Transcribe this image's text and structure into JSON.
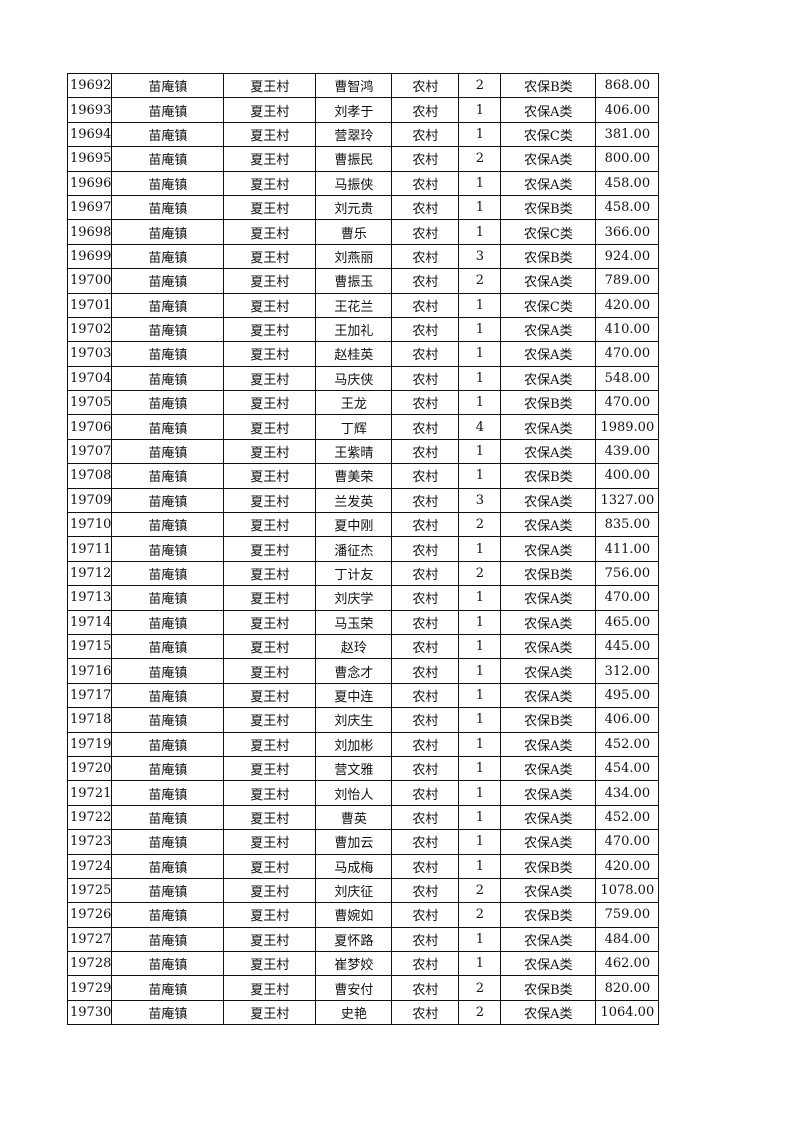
{
  "table": {
    "rows": [
      [
        "19692",
        "苗庵镇",
        "夏王村",
        "曹智鸿",
        "农村",
        "2",
        "农保B类",
        "868.00"
      ],
      [
        "19693",
        "苗庵镇",
        "夏王村",
        "刘孝于",
        "农村",
        "1",
        "农保A类",
        "406.00"
      ],
      [
        "19694",
        "苗庵镇",
        "夏王村",
        "营翠玲",
        "农村",
        "1",
        "农保C类",
        "381.00"
      ],
      [
        "19695",
        "苗庵镇",
        "夏王村",
        "曹振民",
        "农村",
        "2",
        "农保A类",
        "800.00"
      ],
      [
        "19696",
        "苗庵镇",
        "夏王村",
        "马振侠",
        "农村",
        "1",
        "农保A类",
        "458.00"
      ],
      [
        "19697",
        "苗庵镇",
        "夏王村",
        "刘元贵",
        "农村",
        "1",
        "农保B类",
        "458.00"
      ],
      [
        "19698",
        "苗庵镇",
        "夏王村",
        "曹乐",
        "农村",
        "1",
        "农保C类",
        "366.00"
      ],
      [
        "19699",
        "苗庵镇",
        "夏王村",
        "刘燕丽",
        "农村",
        "3",
        "农保B类",
        "924.00"
      ],
      [
        "19700",
        "苗庵镇",
        "夏王村",
        "曹振玉",
        "农村",
        "2",
        "农保A类",
        "789.00"
      ],
      [
        "19701",
        "苗庵镇",
        "夏王村",
        "王花兰",
        "农村",
        "1",
        "农保C类",
        "420.00"
      ],
      [
        "19702",
        "苗庵镇",
        "夏王村",
        "王加礼",
        "农村",
        "1",
        "农保A类",
        "410.00"
      ],
      [
        "19703",
        "苗庵镇",
        "夏王村",
        "赵桂英",
        "农村",
        "1",
        "农保A类",
        "470.00"
      ],
      [
        "19704",
        "苗庵镇",
        "夏王村",
        "马庆侠",
        "农村",
        "1",
        "农保A类",
        "548.00"
      ],
      [
        "19705",
        "苗庵镇",
        "夏王村",
        "王龙",
        "农村",
        "1",
        "农保B类",
        "470.00"
      ],
      [
        "19706",
        "苗庵镇",
        "夏王村",
        "丁辉",
        "农村",
        "4",
        "农保A类",
        "1989.00"
      ],
      [
        "19707",
        "苗庵镇",
        "夏王村",
        "王紫晴",
        "农村",
        "1",
        "农保A类",
        "439.00"
      ],
      [
        "19708",
        "苗庵镇",
        "夏王村",
        "曹美荣",
        "农村",
        "1",
        "农保B类",
        "400.00"
      ],
      [
        "19709",
        "苗庵镇",
        "夏王村",
        "兰发英",
        "农村",
        "3",
        "农保A类",
        "1327.00"
      ],
      [
        "19710",
        "苗庵镇",
        "夏王村",
        "夏中刚",
        "农村",
        "2",
        "农保A类",
        "835.00"
      ],
      [
        "19711",
        "苗庵镇",
        "夏王村",
        "潘征杰",
        "农村",
        "1",
        "农保A类",
        "411.00"
      ],
      [
        "19712",
        "苗庵镇",
        "夏王村",
        "丁计友",
        "农村",
        "2",
        "农保B类",
        "756.00"
      ],
      [
        "19713",
        "苗庵镇",
        "夏王村",
        "刘庆学",
        "农村",
        "1",
        "农保A类",
        "470.00"
      ],
      [
        "19714",
        "苗庵镇",
        "夏王村",
        "马玉荣",
        "农村",
        "1",
        "农保A类",
        "465.00"
      ],
      [
        "19715",
        "苗庵镇",
        "夏王村",
        "赵玲",
        "农村",
        "1",
        "农保A类",
        "445.00"
      ],
      [
        "19716",
        "苗庵镇",
        "夏王村",
        "曹念才",
        "农村",
        "1",
        "农保A类",
        "312.00"
      ],
      [
        "19717",
        "苗庵镇",
        "夏王村",
        "夏中连",
        "农村",
        "1",
        "农保A类",
        "495.00"
      ],
      [
        "19718",
        "苗庵镇",
        "夏王村",
        "刘庆生",
        "农村",
        "1",
        "农保B类",
        "406.00"
      ],
      [
        "19719",
        "苗庵镇",
        "夏王村",
        "刘加彬",
        "农村",
        "1",
        "农保A类",
        "452.00"
      ],
      [
        "19720",
        "苗庵镇",
        "夏王村",
        "营文雅",
        "农村",
        "1",
        "农保A类",
        "454.00"
      ],
      [
        "19721",
        "苗庵镇",
        "夏王村",
        "刘怡人",
        "农村",
        "1",
        "农保A类",
        "434.00"
      ],
      [
        "19722",
        "苗庵镇",
        "夏王村",
        "曹英",
        "农村",
        "1",
        "农保A类",
        "452.00"
      ],
      [
        "19723",
        "苗庵镇",
        "夏王村",
        "曹加云",
        "农村",
        "1",
        "农保A类",
        "470.00"
      ],
      [
        "19724",
        "苗庵镇",
        "夏王村",
        "马成梅",
        "农村",
        "1",
        "农保B类",
        "420.00"
      ],
      [
        "19725",
        "苗庵镇",
        "夏王村",
        "刘庆征",
        "农村",
        "2",
        "农保A类",
        "1078.00"
      ],
      [
        "19726",
        "苗庵镇",
        "夏王村",
        "曹婉如",
        "农村",
        "2",
        "农保B类",
        "759.00"
      ],
      [
        "19727",
        "苗庵镇",
        "夏王村",
        "夏怀路",
        "农村",
        "1",
        "农保A类",
        "484.00"
      ],
      [
        "19728",
        "苗庵镇",
        "夏王村",
        "崔梦姣",
        "农村",
        "1",
        "农保A类",
        "462.00"
      ],
      [
        "19729",
        "苗庵镇",
        "夏王村",
        "曹安付",
        "农村",
        "2",
        "农保B类",
        "820.00"
      ],
      [
        "19730",
        "苗庵镇",
        "夏王村",
        "史艳",
        "农村",
        "2",
        "农保A类",
        "1064.00"
      ]
    ]
  }
}
